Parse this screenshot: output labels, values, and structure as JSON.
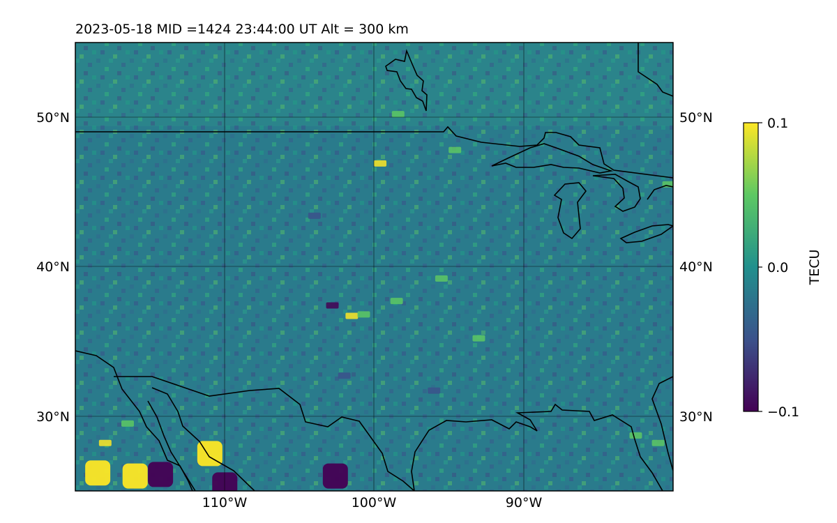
{
  "chart_data": {
    "type": "heatmap",
    "title": "2023-05-18  MID =1424    23:44:00  UT  Alt = 300 km",
    "projection": "map",
    "x": {
      "range": [
        -120,
        -80
      ],
      "ticks": [
        -110,
        -100,
        -90
      ],
      "tick_labels": [
        "110°W",
        "100°W",
        "90°W"
      ]
    },
    "y": {
      "range": [
        25,
        55
      ],
      "ticks": [
        30,
        40,
        50
      ],
      "tick_labels": [
        "30°N",
        "40°N",
        "50°N"
      ]
    },
    "grid": true,
    "colorbar": {
      "label": "TECU",
      "range": [
        -0.1,
        0.1
      ],
      "ticks": [
        0.1,
        0.0,
        -0.1
      ],
      "tick_labels": [
        "0.1",
        "0.0",
        "−0.1"
      ],
      "colormap": "viridis",
      "colors": [
        "#440154",
        "#3b528b",
        "#21908d",
        "#5dc863",
        "#fde725"
      ]
    },
    "field_background_color": "#2a7b8c",
    "hotspots": [
      {
        "lon": -118.5,
        "lat": 26.2,
        "value": 0.1
      },
      {
        "lon": -116.0,
        "lat": 26.0,
        "value": 0.1
      },
      {
        "lon": -118.0,
        "lat": 28.0,
        "value": 0.08
      },
      {
        "lon": -111.0,
        "lat": 27.5,
        "value": 0.09
      },
      {
        "lon": -114.3,
        "lat": 26.1,
        "value": -0.1
      },
      {
        "lon": -110.0,
        "lat": 25.4,
        "value": -0.1
      },
      {
        "lon": -102.6,
        "lat": 26.0,
        "value": -0.1
      },
      {
        "lon": -116.5,
        "lat": 29.3,
        "value": 0.07
      },
      {
        "lon": -101.5,
        "lat": 36.5,
        "value": 0.08
      },
      {
        "lon": -100.7,
        "lat": 36.6,
        "value": 0.07
      },
      {
        "lon": -102.8,
        "lat": 37.2,
        "value": -0.08
      },
      {
        "lon": -99.6,
        "lat": 46.7,
        "value": 0.08
      },
      {
        "lon": -94.6,
        "lat": 47.6,
        "value": 0.07
      },
      {
        "lon": -98.4,
        "lat": 50.0,
        "value": 0.06
      },
      {
        "lon": -82.5,
        "lat": 28.5,
        "value": 0.06
      },
      {
        "lon": -81.0,
        "lat": 28.0,
        "value": 0.07
      },
      {
        "lon": -80.3,
        "lat": 45.3,
        "value": 0.06
      },
      {
        "lon": -102.0,
        "lat": 32.5,
        "value": -0.07
      },
      {
        "lon": -96.0,
        "lat": 31.5,
        "value": -0.05
      },
      {
        "lon": -104.0,
        "lat": 43.2,
        "value": -0.06
      },
      {
        "lon": -98.5,
        "lat": 37.5,
        "value": 0.04
      },
      {
        "lon": -95.5,
        "lat": 39.0,
        "value": 0.04
      },
      {
        "lon": -93.0,
        "lat": 35.0,
        "value": 0.04
      }
    ]
  }
}
